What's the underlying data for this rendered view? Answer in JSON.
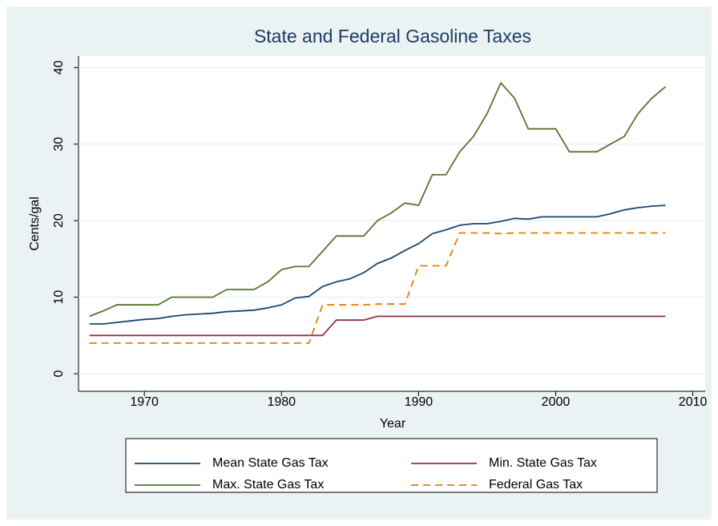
{
  "chart_data": {
    "type": "line",
    "title": "State and Federal Gasoline Taxes",
    "x_label": "Year",
    "y_label": "Cents/gal",
    "x": [
      1966,
      1967,
      1968,
      1969,
      1970,
      1971,
      1972,
      1973,
      1974,
      1975,
      1976,
      1977,
      1978,
      1979,
      1980,
      1981,
      1982,
      1983,
      1984,
      1985,
      1986,
      1987,
      1988,
      1989,
      1990,
      1991,
      1992,
      1993,
      1994,
      1995,
      1996,
      1997,
      1998,
      1999,
      2000,
      2001,
      2002,
      2003,
      2004,
      2005,
      2006,
      2007,
      2008
    ],
    "series": [
      {
        "name": "Mean State Gas Tax",
        "color": "#1a476f",
        "dashed": false,
        "values": [
          6.5,
          6.5,
          6.7,
          6.9,
          7.1,
          7.2,
          7.5,
          7.7,
          7.8,
          7.9,
          8.1,
          8.2,
          8.3,
          8.6,
          9.0,
          9.9,
          10.1,
          11.4,
          12.0,
          12.4,
          13.2,
          14.4,
          15.1,
          16.1,
          17.0,
          18.3,
          18.8,
          19.4,
          19.6,
          19.6,
          19.9,
          20.3,
          20.2,
          20.5,
          20.5,
          20.5,
          20.5,
          20.5,
          20.9,
          21.4,
          21.7,
          21.9,
          22.0
        ]
      },
      {
        "name": "Min. State Gas Tax",
        "color": "#90353b",
        "dashed": false,
        "values": [
          5,
          5,
          5,
          5,
          5,
          5,
          5,
          5,
          5,
          5,
          5,
          5,
          5,
          5,
          5,
          5,
          5,
          5,
          7,
          7,
          7,
          7.5,
          7.5,
          7.5,
          7.5,
          7.5,
          7.5,
          7.5,
          7.5,
          7.5,
          7.5,
          7.5,
          7.5,
          7.5,
          7.5,
          7.5,
          7.5,
          7.5,
          7.5,
          7.5,
          7.5,
          7.5,
          7.5
        ]
      },
      {
        "name": "Max. State Gas Tax",
        "color": "#55752f",
        "dashed": false,
        "values": [
          7.5,
          8.2,
          9,
          9,
          9,
          9,
          10,
          10,
          10,
          10,
          11,
          11,
          11,
          12,
          13.6,
          14,
          14,
          16,
          18,
          18,
          18,
          20,
          21,
          22.3,
          22,
          26,
          26,
          29,
          31,
          34,
          38,
          36,
          32,
          32,
          32,
          29,
          29,
          29,
          30,
          31,
          34,
          36,
          37.5
        ]
      },
      {
        "name": "Federal Gas Tax",
        "color": "#e37e00",
        "dashed": true,
        "values": [
          4,
          4,
          4,
          4,
          4,
          4,
          4,
          4,
          4,
          4,
          4,
          4,
          4,
          4,
          4,
          4,
          4,
          9,
          9,
          9,
          9,
          9.1,
          9.1,
          9.1,
          14.1,
          14.1,
          14.1,
          18.4,
          18.4,
          18.4,
          18.3,
          18.4,
          18.4,
          18.4,
          18.4,
          18.4,
          18.4,
          18.4,
          18.4,
          18.4,
          18.4,
          18.4,
          18.4
        ]
      }
    ],
    "xlim": [
      1965.2,
      2010.9
    ],
    "xticks": [
      1970,
      1980,
      1990,
      2000,
      2010
    ],
    "ylim": [
      -2.3,
      41.5
    ],
    "yticks": [
      0,
      10,
      20,
      30,
      40
    ],
    "grid": true
  }
}
